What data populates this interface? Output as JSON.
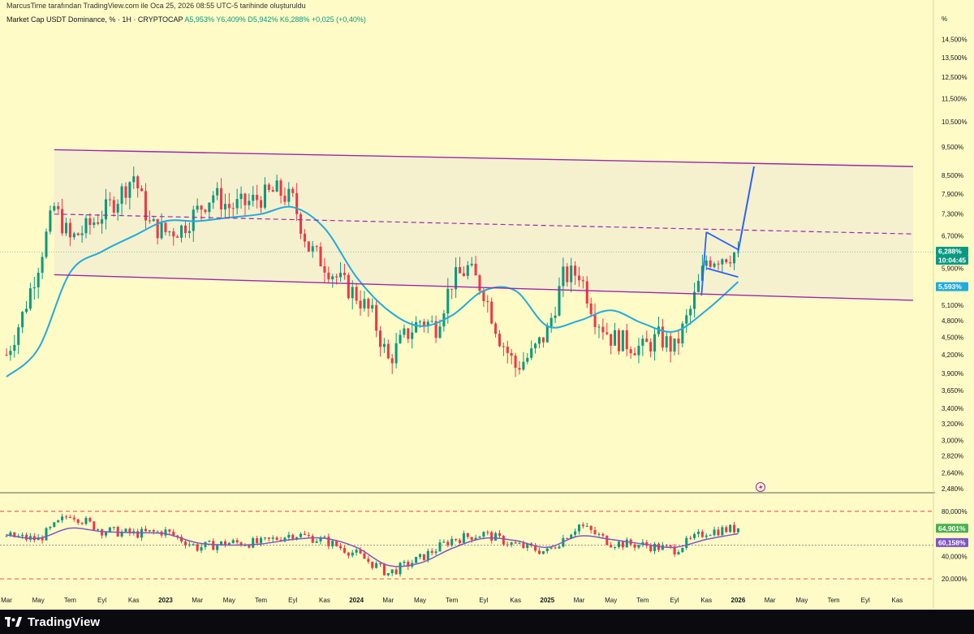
{
  "header": {
    "attribution": "MarcusTime tarafından TradingView.com ile Oca 25, 2026 08:55 UTC-5 tarihinde oluşturuldu"
  },
  "legend": {
    "symbol": "Market Cap USDT Dominance, % · 1H · CRYPTOCAP",
    "ohlc": "A5,953%  Y6,409%  D5,942%  K6,288%  +0,025 (+0,40%)"
  },
  "footer": {
    "brand": "TradingView"
  },
  "colors": {
    "background": "#fffbc6",
    "up": "#089981",
    "down": "#f23645",
    "ma": "#22aadd",
    "channel": "#9c27b0",
    "flag": "#2962ff",
    "rsi": "#7e57c2",
    "rsi_ma": "#7e57c2"
  },
  "chart_data": [
    {
      "type": "candlestick",
      "unit_label": "%",
      "scale": "log",
      "ylim": [
        2.48,
        15.0
      ],
      "y_ticks": [
        "14,500%",
        "13,500%",
        "12,500%",
        "11,500%",
        "10,500%",
        "9,500%",
        "8,500%",
        "7,900%",
        "7,300%",
        "6,700%",
        "5,900%",
        "5,100%",
        "4,800%",
        "4,500%",
        "4,200%",
        "3,900%",
        "3,650%",
        "3,400%",
        "3,200%",
        "3,000%",
        "2,820%",
        "2,640%",
        "2,480%"
      ],
      "y_tick_values": [
        14.5,
        13.5,
        12.5,
        11.5,
        10.5,
        9.5,
        8.5,
        7.9,
        7.3,
        6.7,
        5.9,
        5.1,
        4.8,
        4.5,
        4.2,
        3.9,
        3.65,
        3.4,
        3.2,
        3.0,
        2.82,
        2.64,
        2.48
      ],
      "x_ticks": [
        "Mar",
        "May",
        "Tem",
        "Eyl",
        "Kas",
        "2023",
        "Mar",
        "May",
        "Tem",
        "Eyl",
        "Kas",
        "2024",
        "Mar",
        "May",
        "Tem",
        "Eyl",
        "Kas",
        "2025",
        "Mar",
        "May",
        "Tem",
        "Eyl",
        "Kas",
        "2026",
        "Mar",
        "May",
        "Tem",
        "Eyl",
        "Kas"
      ],
      "x_ticks_bold": [
        "2023",
        "2024",
        "2025",
        "2026"
      ],
      "x_range": [
        "2022-03",
        "2026-12"
      ],
      "series": [
        {
          "name": "",
          "kind": "close",
          "x": [
            "2022-03",
            "2022-04",
            "2022-05",
            "2022-06",
            "2022-07",
            "2022-08",
            "2022-09",
            "2022-10",
            "2022-11",
            "2022-12",
            "2023-01",
            "2023-02",
            "2023-03",
            "2023-04",
            "2023-05",
            "2023-06",
            "2023-07",
            "2023-08",
            "2023-09",
            "2023-10",
            "2023-11",
            "2023-12",
            "2024-01",
            "2024-02",
            "2024-03",
            "2024-04",
            "2024-05",
            "2024-06",
            "2024-07",
            "2024-08",
            "2024-09",
            "2024-10",
            "2024-11",
            "2024-12",
            "2025-01",
            "2025-02",
            "2025-03",
            "2025-04",
            "2025-05",
            "2025-06",
            "2025-07",
            "2025-08",
            "2025-09",
            "2025-10",
            "2025-11",
            "2025-12",
            "2026-01"
          ],
          "values": [
            4.2,
            4.9,
            6.0,
            7.5,
            6.6,
            6.9,
            7.3,
            7.8,
            8.5,
            7.0,
            6.8,
            6.9,
            7.4,
            7.9,
            7.5,
            7.6,
            7.8,
            8.0,
            7.7,
            6.4,
            6.0,
            5.6,
            5.3,
            4.9,
            4.1,
            4.5,
            4.8,
            4.7,
            5.6,
            5.9,
            5.4,
            4.5,
            4.0,
            4.2,
            4.6,
            5.7,
            5.8,
            4.9,
            4.5,
            4.4,
            4.3,
            4.5,
            4.3,
            5.0,
            6.1,
            6.2,
            6.288
          ]
        },
        {
          "name": "",
          "kind": "moving-average",
          "x": [
            "2022-03",
            "2022-05",
            "2022-07",
            "2022-09",
            "2022-11",
            "2023-01",
            "2023-03",
            "2023-05",
            "2023-07",
            "2023-09",
            "2023-11",
            "2024-01",
            "2024-03",
            "2024-05",
            "2024-07",
            "2024-09",
            "2024-11",
            "2025-01",
            "2025-03",
            "2025-05",
            "2025-07",
            "2025-09",
            "2025-11",
            "2026-01"
          ],
          "values": [
            3.85,
            4.3,
            5.8,
            6.3,
            6.7,
            7.1,
            7.1,
            7.2,
            7.3,
            7.5,
            6.9,
            5.7,
            5.0,
            4.7,
            4.9,
            5.4,
            5.4,
            4.7,
            4.8,
            5.0,
            4.75,
            4.6,
            5.0,
            5.593
          ]
        }
      ],
      "annotations": [
        {
          "kind": "channel-top",
          "from": [
            "2022-06",
            9.4
          ],
          "to": [
            "2026-12",
            8.8
          ]
        },
        {
          "kind": "channel-bottom",
          "from": [
            "2022-06",
            5.75
          ],
          "to": [
            "2026-12",
            5.2
          ]
        },
        {
          "kind": "channel-mid-dashed",
          "from": [
            "2022-06",
            7.3
          ],
          "to": [
            "2026-12",
            6.75
          ]
        },
        {
          "kind": "flag-top",
          "from": [
            "2025-11",
            6.8
          ],
          "to": [
            "2026-01",
            6.35
          ]
        },
        {
          "kind": "flag-bottom",
          "from": [
            "2025-11",
            5.9
          ],
          "to": [
            "2026-01",
            5.7
          ]
        },
        {
          "kind": "breakout-arrow",
          "from": [
            "2026-01",
            6.3
          ],
          "to": [
            "2026-02",
            8.8
          ]
        }
      ],
      "last_price_label": "6,288%",
      "countdown_label": "10:04:45",
      "ma_label": "5,593%"
    },
    {
      "type": "line",
      "indicator": "RSI",
      "ylim": [
        15,
        90
      ],
      "y_ticks": [
        "80,000%",
        "40,000%",
        "20,000%"
      ],
      "y_tick_values": [
        80,
        40,
        20
      ],
      "levels": [
        80,
        50,
        20
      ],
      "series": [
        {
          "name": "",
          "x": [
            "2022-03",
            "2022-05",
            "2022-07",
            "2022-09",
            "2022-11",
            "2023-01",
            "2023-03",
            "2023-05",
            "2023-07",
            "2023-09",
            "2023-11",
            "2024-01",
            "2024-03",
            "2024-05",
            "2024-07",
            "2024-09",
            "2024-11",
            "2025-01",
            "2025-03",
            "2025-05",
            "2025-07",
            "2025-09",
            "2025-11",
            "2026-01"
          ],
          "values": [
            58,
            55,
            78,
            63,
            60,
            62,
            48,
            52,
            52,
            60,
            54,
            42,
            25,
            38,
            55,
            60,
            50,
            44,
            68,
            52,
            50,
            46,
            62,
            64.901
          ]
        },
        {
          "name": "",
          "x": [
            "2022-03",
            "2022-05",
            "2022-07",
            "2022-09",
            "2022-11",
            "2023-01",
            "2023-03",
            "2023-05",
            "2023-07",
            "2023-09",
            "2023-11",
            "2024-01",
            "2024-03",
            "2024-05",
            "2024-07",
            "2024-09",
            "2024-11",
            "2025-01",
            "2025-03",
            "2025-05",
            "2025-07",
            "2025-09",
            "2025-11",
            "2026-01"
          ],
          "values": [
            59,
            56,
            65,
            62,
            61,
            60,
            52,
            50,
            51,
            55,
            56,
            48,
            32,
            34,
            47,
            56,
            54,
            48,
            58,
            55,
            51,
            48,
            55,
            60.158
          ]
        }
      ],
      "value_label": "64,901%",
      "ma_label": "60,158%"
    }
  ]
}
